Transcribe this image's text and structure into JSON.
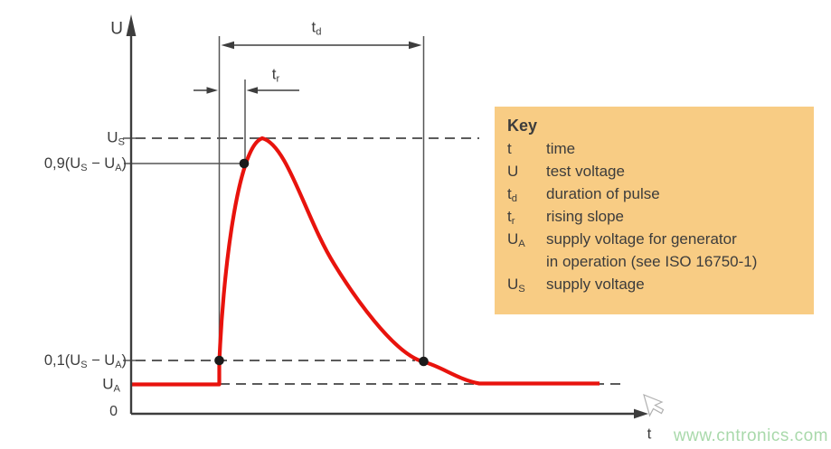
{
  "figure_type": "voltage-test-pulse-diagram",
  "labels": {
    "u": [
      {
        "t": "U"
      }
    ],
    "t": [
      {
        "t": "t"
      }
    ],
    "zero": [
      {
        "t": "0"
      }
    ],
    "us": [
      {
        "t": "U"
      },
      {
        "t": "S",
        "sub": true
      }
    ],
    "ua": [
      {
        "t": "U"
      },
      {
        "t": "A",
        "sub": true
      }
    ],
    "p09": [
      {
        "t": "0,9(U"
      },
      {
        "t": "S",
        "sub": true
      },
      {
        "t": " − U"
      },
      {
        "t": "A",
        "sub": true
      },
      {
        "t": ")"
      }
    ],
    "p01": [
      {
        "t": "0,1(U"
      },
      {
        "t": "S",
        "sub": true
      },
      {
        "t": " − U"
      },
      {
        "t": "A",
        "sub": true
      },
      {
        "t": ")"
      }
    ],
    "td": [
      {
        "t": "t"
      },
      {
        "t": "d",
        "sub": true
      }
    ],
    "tr": [
      {
        "t": "t"
      },
      {
        "t": "r",
        "sub": true
      }
    ]
  },
  "key": {
    "title": "Key",
    "items": [
      {
        "sym": [
          {
            "t": "t"
          }
        ],
        "desc": [
          "time"
        ]
      },
      {
        "sym": [
          {
            "t": "U"
          }
        ],
        "desc": [
          "test voltage"
        ]
      },
      {
        "sym": [
          {
            "t": "t"
          },
          {
            "t": "d",
            "sub": true
          }
        ],
        "desc": [
          "duration of pulse"
        ]
      },
      {
        "sym": [
          {
            "t": "t"
          },
          {
            "t": "r",
            "sub": true
          }
        ],
        "desc": [
          "rising slope"
        ]
      },
      {
        "sym": [
          {
            "t": "U"
          },
          {
            "t": "A",
            "sub": true
          }
        ],
        "desc": [
          "supply voltage for generator",
          "in operation (see ISO 16750-1)"
        ]
      },
      {
        "sym": [
          {
            "t": "U"
          },
          {
            "t": "S",
            "sub": true
          }
        ],
        "desc": [
          "supply voltage"
        ]
      }
    ]
  },
  "watermark": "www.cntronics.com",
  "colors": {
    "red": "#e8130d",
    "line": "#3d3d3d",
    "thin": "#555555",
    "dash": "#5b5b5b",
    "dot": "#1b1b1b",
    "text": "#3c3c3c",
    "key_bg": "#f8cc84",
    "watermark": "#a9d9ab",
    "bg": "#ffffff"
  },
  "chart_data": {
    "type": "line",
    "xlabel": "t",
    "ylabel": "U",
    "y_levels": [
      "0",
      "UA",
      "0,1(US − UA)",
      "0,9(US − UA)",
      "US"
    ],
    "series": [
      {
        "name": "test pulse",
        "description": "voltage rests at UA, rises steeply through 0,1(US − UA) and 0,9(US − UA) to a peak at US, then decays smoothly back to UA"
      }
    ],
    "annotations": [
      "td spans between the two 0,1(US − UA) crossings (duration of pulse)",
      "tr spans the rise between 0,1 and 0,9 thresholds (rising slope)",
      "three marked points: rise start at 0,1 level, rise at 0,9 level, decay crossing 0,1 level"
    ],
    "legend_position": "right",
    "grid": false
  }
}
